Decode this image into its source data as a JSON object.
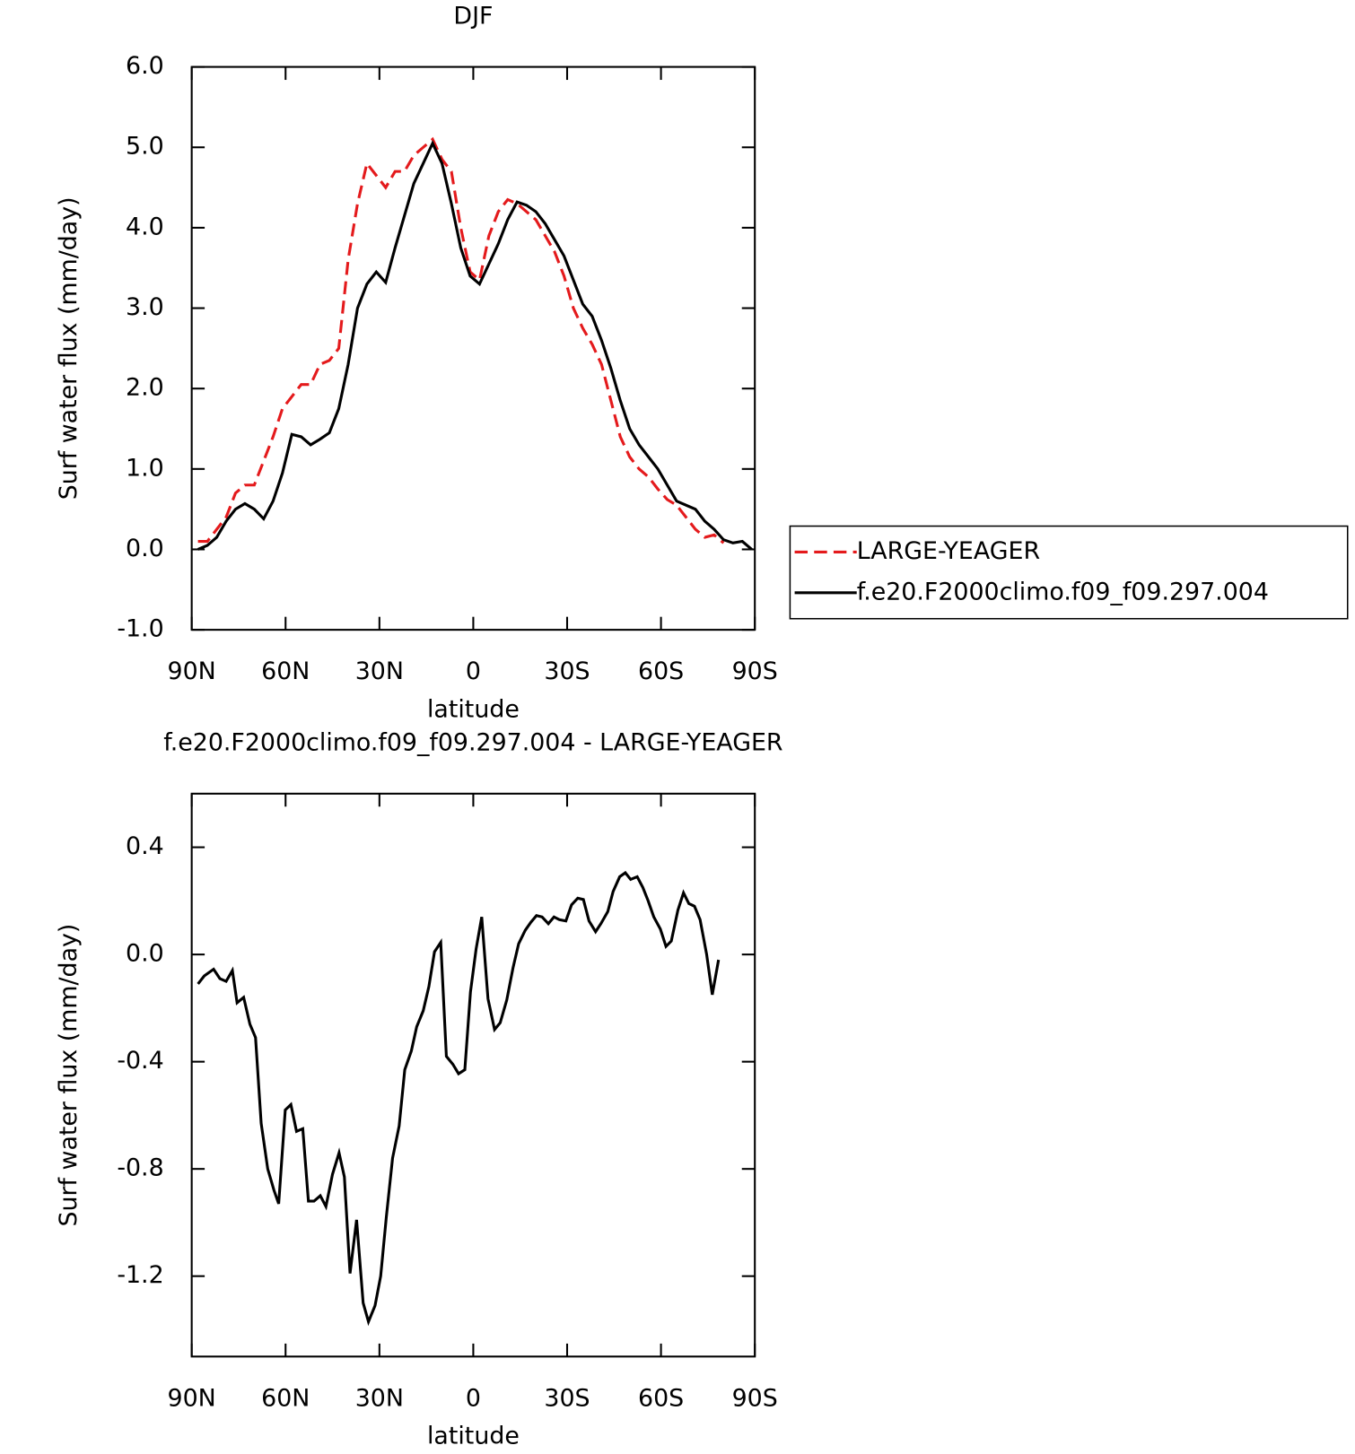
{
  "chart_data": [
    {
      "type": "line",
      "title": "DJF",
      "x_label": "latitude",
      "y_label": "Surf water flux (mm/day)",
      "x": [
        88,
        85,
        82,
        79,
        76,
        73,
        70,
        67,
        64,
        61,
        58,
        55,
        52,
        49,
        46,
        43,
        40,
        37,
        34,
        31,
        28,
        25,
        22,
        19,
        16,
        13,
        10,
        7,
        4,
        1,
        -2,
        -5,
        -8,
        -11,
        -14,
        -17,
        -20,
        -23,
        -26,
        -29,
        -32,
        -35,
        -38,
        -41,
        -44,
        -47,
        -50,
        -53,
        -56,
        -59,
        -62,
        -65,
        -68,
        -71,
        -74,
        -77,
        -80,
        -83,
        -86,
        -89
      ],
      "series": [
        {
          "name": "LARGE-YEAGER",
          "color": "#e41a1c",
          "line_style": "dashed",
          "values": [
            0.1,
            0.1,
            0.25,
            0.4,
            0.7,
            0.8,
            0.8,
            1.1,
            1.4,
            1.75,
            1.9,
            2.05,
            2.05,
            2.3,
            2.35,
            2.5,
            3.6,
            4.3,
            4.8,
            4.65,
            4.5,
            4.7,
            4.7,
            4.9,
            5.0,
            5.1,
            4.85,
            4.7,
            4.0,
            3.45,
            3.35,
            3.9,
            4.2,
            4.35,
            4.3,
            4.2,
            4.1,
            3.9,
            3.7,
            3.4,
            3.0,
            2.75,
            2.55,
            2.3,
            1.85,
            1.4,
            1.15,
            1.0,
            0.9,
            0.75,
            0.62,
            0.55,
            0.4,
            0.25,
            0.15,
            0.18,
            0.08,
            null,
            null,
            null
          ]
        },
        {
          "name": "f.e20.F2000climo.f09_f09.297.004",
          "color": "#000000",
          "line_style": "solid",
          "values": [
            0.0,
            0.05,
            0.15,
            0.35,
            0.5,
            0.57,
            0.5,
            0.38,
            0.6,
            0.95,
            1.43,
            1.4,
            1.3,
            1.37,
            1.45,
            1.75,
            2.3,
            3.0,
            3.3,
            3.45,
            3.32,
            3.75,
            4.15,
            4.55,
            4.8,
            5.05,
            4.8,
            4.3,
            3.75,
            3.4,
            3.3,
            3.55,
            3.8,
            4.1,
            4.32,
            4.28,
            4.2,
            4.05,
            3.85,
            3.65,
            3.35,
            3.05,
            2.9,
            2.6,
            2.25,
            1.85,
            1.5,
            1.3,
            1.15,
            1.0,
            0.8,
            0.6,
            0.55,
            0.5,
            0.35,
            0.25,
            0.12,
            0.08,
            0.1,
            0.0
          ]
        }
      ],
      "xlim": [
        90,
        -90
      ],
      "xticks": [
        {
          "value": 90,
          "label": "90N"
        },
        {
          "value": 60,
          "label": "60N"
        },
        {
          "value": 30,
          "label": "30N"
        },
        0,
        {
          "value": -30,
          "label": "30S"
        },
        {
          "value": -60,
          "label": "60S"
        },
        {
          "value": -90,
          "label": "90S"
        }
      ],
      "ylim": [
        -1,
        6
      ],
      "yticks": [
        {
          "value": -1,
          "label": "-1.0"
        },
        {
          "value": 0,
          "label": "0.0"
        },
        {
          "value": 1,
          "label": "1.0"
        },
        {
          "value": 2,
          "label": "2.0"
        },
        {
          "value": 3,
          "label": "3.0"
        },
        {
          "value": 4,
          "label": "4.0"
        },
        {
          "value": 5,
          "label": "5.0"
        },
        {
          "value": 6,
          "label": "6.0"
        }
      ],
      "legend": "right"
    },
    {
      "type": "line",
      "title": "f.e20.F2000climo.f09_f09.297.004 - LARGE-YEAGER",
      "x_label": "latitude",
      "y_label": "Surf water flux (mm/day)",
      "x": [
        88,
        86,
        83,
        81,
        79,
        77,
        75.5,
        73.4,
        71.4,
        69.6,
        67.8,
        65.7,
        63.7,
        62.2,
        60.1,
        58.3,
        56.5,
        54.5,
        52.7,
        50.9,
        48.9,
        47.1,
        45,
        42.9,
        41.2,
        39.4,
        37.3,
        35.2,
        33.5,
        31.4,
        29.6,
        27.8,
        25.8,
        23.7,
        21.9,
        19.8,
        18.1,
        16,
        14.2,
        12.4,
        10.4,
        8.6,
        6.5,
        4.7,
        2.7,
        0.9,
        -0.9,
        -2.7,
        -4.7,
        -6.8,
        -8.6,
        -10.7,
        -12.7,
        -14.5,
        -16.6,
        -18.4,
        -20.2,
        -22,
        -24,
        -25.8,
        -27.5,
        -29.6,
        -31.4,
        -33.4,
        -35.2,
        -37,
        -39.1,
        -40.8,
        -43,
        -44.7,
        -46.8,
        -48.6,
        -50.3,
        -52.4,
        -54.2,
        -55.9,
        -57.7,
        -59.8,
        -61.6,
        -63.3,
        -65.4,
        -67.2,
        -68.9,
        -70.7,
        -72.5,
        -74.6,
        -76.4,
        -78.4
      ],
      "values": [
        -0.11,
        -0.08,
        -0.055,
        -0.09,
        -0.1,
        -0.06,
        -0.18,
        -0.16,
        -0.26,
        -0.31,
        -0.63,
        -0.8,
        -0.88,
        -0.93,
        -0.58,
        -0.56,
        -0.66,
        -0.65,
        -0.92,
        -0.92,
        -0.9,
        -0.94,
        -0.82,
        -0.74,
        -0.83,
        -1.19,
        -0.99,
        -1.3,
        -1.37,
        -1.31,
        -1.2,
        -0.98,
        -0.76,
        -0.64,
        -0.43,
        -0.36,
        -0.27,
        -0.21,
        -0.12,
        0.01,
        0.045,
        -0.38,
        -0.41,
        -0.445,
        -0.43,
        -0.14,
        0.02,
        0.14,
        -0.165,
        -0.28,
        -0.255,
        -0.17,
        -0.05,
        0.04,
        0.09,
        0.12,
        0.145,
        0.14,
        0.115,
        0.14,
        0.13,
        0.125,
        0.185,
        0.21,
        0.205,
        0.125,
        0.085,
        0.115,
        0.16,
        0.235,
        0.29,
        0.305,
        0.28,
        0.29,
        0.25,
        0.2,
        0.14,
        0.095,
        0.03,
        0.05,
        0.165,
        0.23,
        0.19,
        0.18,
        0.13,
        0.0,
        -0.15,
        -0.02
      ],
      "color": "#000000",
      "xlim": [
        90,
        -90
      ],
      "xticks": [
        {
          "value": 90,
          "label": "90N"
        },
        {
          "value": 60,
          "label": "60N"
        },
        {
          "value": 30,
          "label": "30N"
        },
        0,
        {
          "value": -30,
          "label": "30S"
        },
        {
          "value": -60,
          "label": "60S"
        },
        {
          "value": -90,
          "label": "90S"
        }
      ],
      "ylim": [
        -1.5,
        0.6
      ],
      "yticks": [
        {
          "value": -1.2,
          "label": "-1.2"
        },
        {
          "value": -0.8,
          "label": "-0.8"
        },
        {
          "value": -0.4,
          "label": "-0.4"
        },
        {
          "value": 0,
          "label": "0.0"
        },
        0.4
      ]
    }
  ]
}
